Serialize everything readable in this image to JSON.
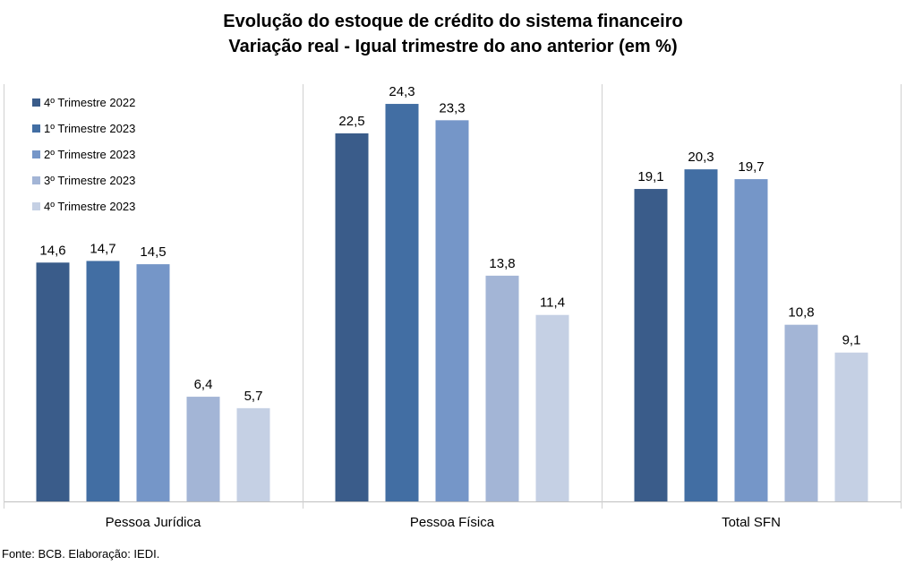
{
  "title": "Evolução do estoque de crédito do sistema financeiro",
  "subtitle": "Variação real - Igual trimestre do ano anterior (em %)",
  "source": "Fonte: BCB. Elaboração: IEDI.",
  "chart_data": {
    "type": "bar",
    "categories": [
      "Pessoa Jurídica",
      "Pessoa Física",
      "Total SFN"
    ],
    "series": [
      {
        "name": "4º Trimestre 2022",
        "values": [
          14.6,
          22.5,
          19.1
        ],
        "labels": [
          "14,6",
          "22,5",
          "19,1"
        ],
        "color": "#3a5c8a"
      },
      {
        "name": "1º Trimestre 2023",
        "values": [
          14.7,
          24.3,
          20.3
        ],
        "labels": [
          "14,7",
          "24,3",
          "20,3"
        ],
        "color": "#426ea3"
      },
      {
        "name": "2º Trimestre 2023",
        "values": [
          14.5,
          23.3,
          19.7
        ],
        "labels": [
          "14,5",
          "23,3",
          "19,7"
        ],
        "color": "#7596c8"
      },
      {
        "name": "3º Trimestre 2023",
        "values": [
          6.4,
          13.8,
          10.8
        ],
        "labels": [
          "6,4",
          "13,8",
          "10,8"
        ],
        "color": "#a3b5d6"
      },
      {
        "name": "4º Trimestre 2023",
        "values": [
          5.7,
          11.4,
          9.1
        ],
        "labels": [
          "5,7",
          "11,4",
          "9,1"
        ],
        "color": "#c5d0e4"
      }
    ],
    "ylim": [
      0,
      25
    ],
    "grid": false,
    "legend_position": "top-left"
  }
}
